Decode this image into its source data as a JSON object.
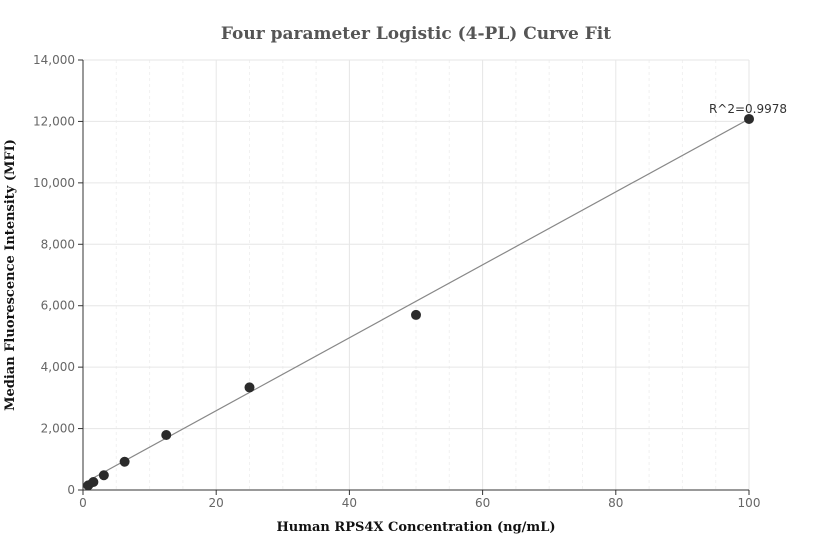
{
  "chart_data": {
    "type": "scatter",
    "title": "Four parameter Logistic (4-PL) Curve Fit",
    "xlabel": "Human RPS4X Concentration (ng/mL)",
    "ylabel": "Median Fluorescence Intensity (MFI)",
    "xlim": [
      0,
      100
    ],
    "ylim": [
      0,
      14000
    ],
    "x_ticks": [
      0,
      20,
      40,
      60,
      80,
      100
    ],
    "y_ticks": [
      0,
      2000,
      4000,
      6000,
      8000,
      10000,
      12000,
      14000
    ],
    "x_tick_labels": [
      "0",
      "20",
      "40",
      "60",
      "80",
      "100"
    ],
    "y_tick_labels": [
      "0",
      "2,000",
      "4,000",
      "6,000",
      "8,000",
      "10,000",
      "12,000",
      "14,000"
    ],
    "grid": true,
    "series": [
      {
        "x": [
          0.78,
          1.56,
          3.13,
          6.25,
          12.5,
          25,
          50,
          100
        ],
        "y": [
          150,
          260,
          480,
          920,
          1790,
          3340,
          5700,
          12080
        ]
      }
    ],
    "fit_line": {
      "x": [
        0.78,
        100
      ],
      "y": [
        300,
        12080
      ]
    },
    "annotation": {
      "text": "R^2=0.9978",
      "x": 100,
      "y": 12080
    },
    "colors": {
      "points": "#2b2b2b",
      "fit_line": "#888888",
      "grid": "#e6e6e6",
      "title": "#555555"
    }
  }
}
